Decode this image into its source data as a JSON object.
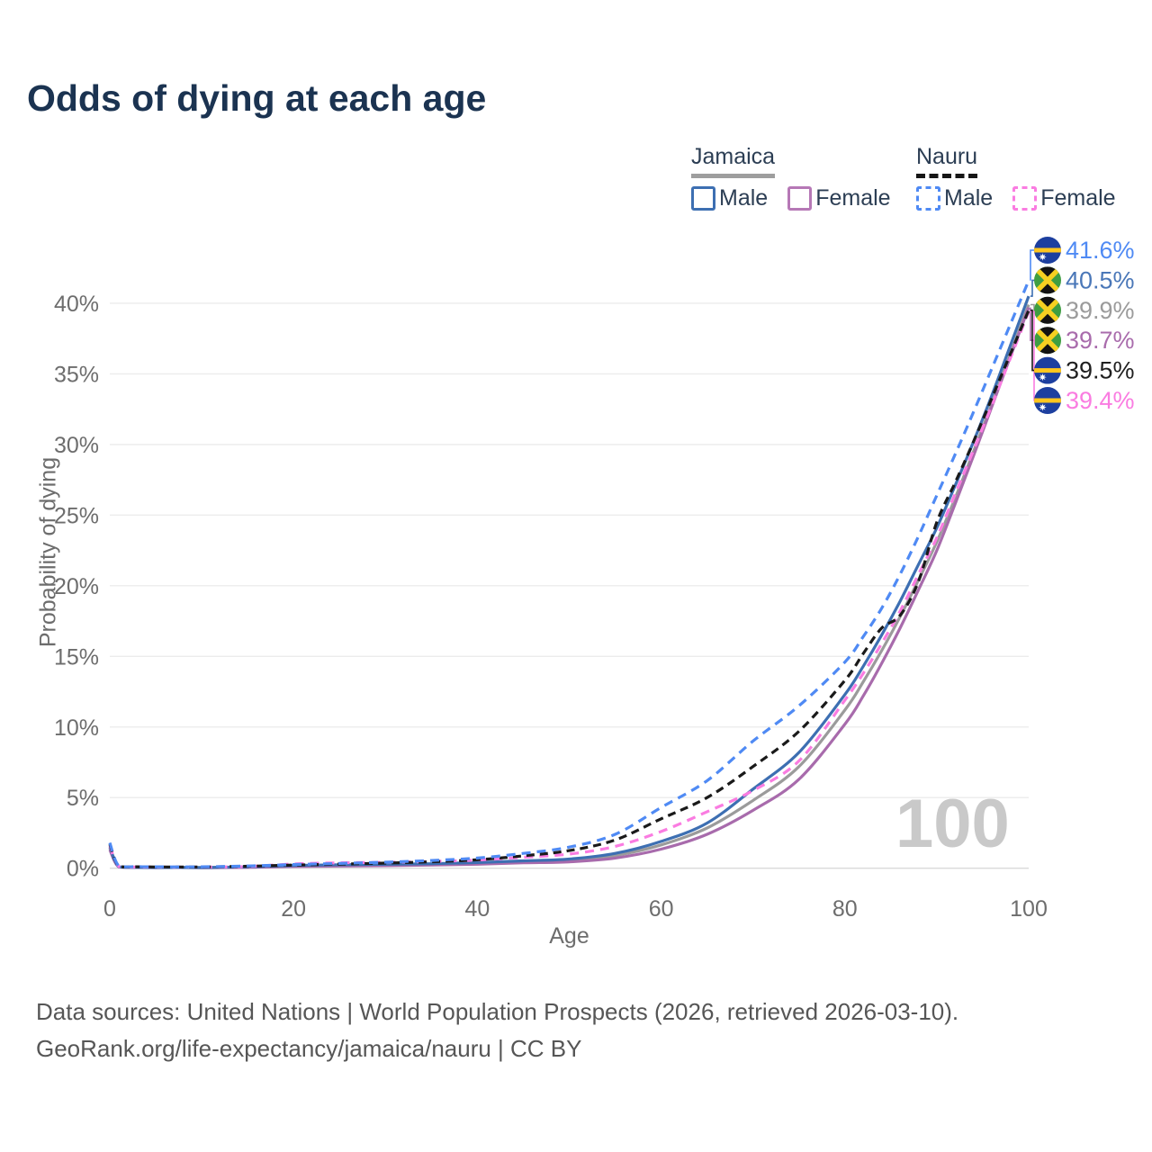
{
  "title": "Odds of dying at each age",
  "watermark": "100",
  "legend": {
    "jamaica": {
      "name": "Jamaica",
      "male": "Male",
      "female": "Female"
    },
    "nauru": {
      "name": "Nauru",
      "male": "Male",
      "female": "Female"
    }
  },
  "footer": {
    "line1": "Data sources: United Nations | World Population Prospects (2026, retrieved 2026-03-10).",
    "line2": "GeoRank.org/life-expectancy/jamaica/nauru | CC BY"
  },
  "chart_data": {
    "type": "line",
    "title": "Odds of dying at each age",
    "x_axis": {
      "label": "Age",
      "ticks": [
        0,
        20,
        40,
        60,
        80,
        100
      ],
      "range": [
        0,
        100
      ]
    },
    "y_axis": {
      "label": "Probability of dying",
      "ticks": [
        0,
        5,
        10,
        15,
        20,
        25,
        30,
        35,
        40
      ],
      "unit": "%",
      "range": [
        0,
        43
      ]
    },
    "grid": "horizontal-only",
    "legend_position": "top-right",
    "ages": [
      0,
      1,
      3,
      5,
      10,
      15,
      20,
      25,
      30,
      35,
      40,
      45,
      50,
      55,
      60,
      65,
      70,
      75,
      80,
      82,
      84,
      86,
      88,
      90,
      92,
      94,
      96,
      98,
      100
    ],
    "series": [
      {
        "id": "jamaica_total",
        "name": "Jamaica (both sexes)",
        "country": "Jamaica",
        "sex": "total",
        "color": "#9b9b9b",
        "dash": "solid",
        "dash_pattern": null,
        "flag": "jamaica",
        "label_order": 2,
        "end_label": "39.9%",
        "label_color": "#9b9b9b",
        "values": [
          1.4,
          0.09,
          0.05,
          0.05,
          0.04,
          0.08,
          0.16,
          0.2,
          0.23,
          0.27,
          0.34,
          0.45,
          0.55,
          0.9,
          1.65,
          2.85,
          4.8,
          7.2,
          11.2,
          13.2,
          15.4,
          17.8,
          20.4,
          23.1,
          26.2,
          29.5,
          32.9,
          36.4,
          39.9
        ]
      },
      {
        "id": "jamaica_female",
        "name": "Jamaica Female",
        "country": "Jamaica",
        "sex": "female",
        "color": "#a86bac",
        "dash": "solid",
        "dash_pattern": null,
        "flag": "jamaica",
        "label_order": 3,
        "end_label": "39.7%",
        "label_color": "#a96cac",
        "values": [
          1.3,
          0.08,
          0.05,
          0.04,
          0.04,
          0.06,
          0.12,
          0.15,
          0.18,
          0.22,
          0.28,
          0.38,
          0.45,
          0.72,
          1.35,
          2.4,
          4.1,
          6.3,
          10.2,
          12.2,
          14.5,
          17.0,
          19.7,
          22.5,
          25.8,
          29.2,
          32.7,
          36.2,
          39.7
        ]
      },
      {
        "id": "jamaica_male",
        "name": "Jamaica Male",
        "country": "Jamaica",
        "sex": "male",
        "color": "#3d6fb2",
        "dash": "solid",
        "dash_pattern": null,
        "flag": "jamaica",
        "label_order": 1,
        "end_label": "40.5%",
        "label_color": "#4a77b8",
        "values": [
          1.5,
          0.1,
          0.06,
          0.05,
          0.05,
          0.1,
          0.2,
          0.25,
          0.28,
          0.32,
          0.4,
          0.52,
          0.65,
          1.05,
          1.9,
          3.2,
          5.6,
          8.2,
          12.3,
          14.3,
          16.5,
          18.9,
          21.5,
          24.1,
          27.1,
          30.2,
          33.5,
          37.0,
          40.5
        ]
      },
      {
        "id": "nauru_female",
        "name": "Nauru Female",
        "country": "Nauru",
        "sex": "female",
        "color": "#fa7ce1",
        "dash": "dashed",
        "dash_pattern": "10 7",
        "flag": "nauru",
        "label_order": 5,
        "end_label": "39.4%",
        "label_color": "#fa7ce1",
        "values": [
          1.6,
          0.12,
          0.09,
          0.08,
          0.08,
          0.12,
          0.3,
          0.38,
          0.42,
          0.48,
          0.58,
          0.78,
          1.0,
          1.55,
          2.6,
          4.0,
          5.5,
          7.6,
          11.9,
          13.8,
          15.9,
          18.2,
          20.8,
          23.4,
          26.5,
          29.6,
          32.8,
          36.1,
          39.4
        ]
      },
      {
        "id": "nauru_total",
        "name": "Nauru (both sexes)",
        "country": "Nauru",
        "sex": "total",
        "color": "#1a1a1a",
        "dash": "dashed",
        "dash_pattern": "9 6",
        "flag": "nauru",
        "label_order": 4,
        "end_label": "39.5%",
        "label_color": "#1f1f1f",
        "values": [
          1.7,
          0.13,
          0.1,
          0.09,
          0.09,
          0.14,
          0.22,
          0.29,
          0.36,
          0.46,
          0.6,
          0.88,
          1.25,
          2.0,
          3.5,
          5.0,
          7.2,
          9.7,
          13.3,
          15.2,
          17.0,
          17.9,
          20.3,
          24.5,
          27.3,
          30.2,
          33.3,
          36.4,
          39.5
        ]
      },
      {
        "id": "nauru_male",
        "name": "Nauru Male",
        "country": "Nauru",
        "sex": "male",
        "color": "#4f8af4",
        "dash": "dashed",
        "dash_pattern": "10 7",
        "flag": "nauru",
        "label_order": 0,
        "end_label": "41.6%",
        "label_color": "#4f8af4",
        "values": [
          1.8,
          0.15,
          0.11,
          0.1,
          0.1,
          0.16,
          0.26,
          0.34,
          0.43,
          0.55,
          0.72,
          1.05,
          1.5,
          2.4,
          4.3,
          6.2,
          9.0,
          11.5,
          14.6,
          16.4,
          18.4,
          20.8,
          23.5,
          26.4,
          29.3,
          32.3,
          35.4,
          38.5,
          41.6
        ]
      }
    ]
  }
}
